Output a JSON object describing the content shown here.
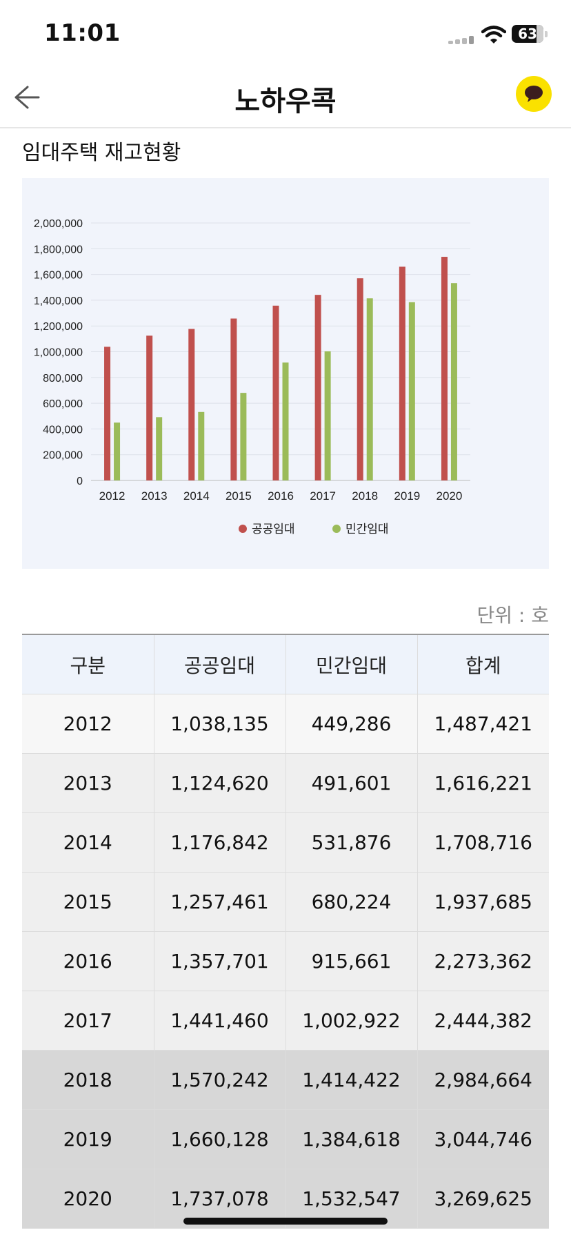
{
  "status_bar": {
    "time": "11:01",
    "battery": "63"
  },
  "header": {
    "title": "노하우콕",
    "back_icon": "back-arrow-icon",
    "chat_icon": "kakao-chat-icon"
  },
  "section": {
    "title": "임대주택 재고현황"
  },
  "colors": {
    "series_public": "#c0504d",
    "series_private": "#9bbb59",
    "chat_button": "#FAE100"
  },
  "chart_data": {
    "type": "bar",
    "title": "",
    "xlabel": "",
    "ylabel": "",
    "ylim": [
      0,
      2000000
    ],
    "yticks": [
      0,
      200000,
      400000,
      600000,
      800000,
      1000000,
      1200000,
      1400000,
      1600000,
      1800000,
      2000000
    ],
    "ytick_labels": [
      "0",
      "200,000",
      "400,000",
      "600,000",
      "800,000",
      "1,000,000",
      "1,200,000",
      "1,400,000",
      "1,600,000",
      "1,800,000",
      "2,000,000"
    ],
    "categories": [
      "2012",
      "2013",
      "2014",
      "2015",
      "2016",
      "2017",
      "2018",
      "2019",
      "2020"
    ],
    "series": [
      {
        "name": "공공임대",
        "color": "#c0504d",
        "values": [
          1038135,
          1124620,
          1176842,
          1257461,
          1357701,
          1441460,
          1570242,
          1660128,
          1737078
        ]
      },
      {
        "name": "민간임대",
        "color": "#9bbb59",
        "values": [
          449286,
          491601,
          531876,
          680224,
          915661,
          1002922,
          1414422,
          1384618,
          1532547
        ]
      }
    ],
    "grid": true,
    "legend": "bottom"
  },
  "table": {
    "unit": "단위 : 호",
    "headers": [
      "구분",
      "공공임대",
      "민간임대",
      "합계"
    ],
    "rows": [
      [
        "2012",
        "1,038,135",
        "449,286",
        "1,487,421"
      ],
      [
        "2013",
        "1,124,620",
        "491,601",
        "1,616,221"
      ],
      [
        "2014",
        "1,176,842",
        "531,876",
        "1,708,716"
      ],
      [
        "2015",
        "1,257,461",
        "680,224",
        "1,937,685"
      ],
      [
        "2016",
        "1,357,701",
        "915,661",
        "2,273,362"
      ],
      [
        "2017",
        "1,441,460",
        "1,002,922",
        "2,444,382"
      ],
      [
        "2018",
        "1,570,242",
        "1,414,422",
        "2,984,664"
      ],
      [
        "2019",
        "1,660,128",
        "1,384,618",
        "3,044,746"
      ],
      [
        "2020",
        "1,737,078",
        "1,532,547",
        "3,269,625"
      ]
    ]
  }
}
